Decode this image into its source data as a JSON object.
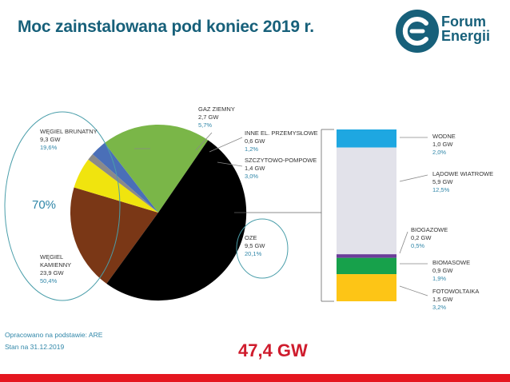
{
  "header": {
    "title": "Moc zainstalowana pod koniec 2019 r.",
    "logo_line1": "Forum",
    "logo_line2": "Energii"
  },
  "chart_data": [
    {
      "type": "pie",
      "unit": "GW",
      "slices": [
        {
          "name": "WĘGIEL BRUNATNY",
          "value": 9.3,
          "value_label": "9,3 GW",
          "pct_label": "19,6%",
          "color": "#7a3716"
        },
        {
          "name": "GAZ ZIEMNY",
          "value": 2.7,
          "value_label": "2,7 GW",
          "pct_label": "5,7%",
          "color": "#f0e40e"
        },
        {
          "name": "INNE EL. PRZEMYSŁOWE",
          "value": 0.6,
          "value_label": "0,6 GW",
          "pct_label": "1,2%",
          "color": "#8a8a8a"
        },
        {
          "name": "SZCZYTOWO-POMPOWE",
          "value": 1.4,
          "value_label": "1,4 GW",
          "pct_label": "3,0%",
          "color": "#4a6fb8"
        },
        {
          "name": "OZE",
          "value": 9.5,
          "value_label": "9,5 GW",
          "pct_label": "20,1%",
          "color": "#7ab648"
        },
        {
          "name": "WĘGIEL KAMIENNY",
          "value": 23.9,
          "value_label": "23,9 GW",
          "pct_label": "50,4%",
          "color": "#000000"
        }
      ],
      "highlight_label": "70%"
    },
    {
      "type": "bar",
      "stacked": true,
      "unit": "GW",
      "segments": [
        {
          "name": "WODNE",
          "value": 1.0,
          "value_label": "1,0 GW",
          "pct_label": "2,0%",
          "color": "#1ea7e1"
        },
        {
          "name": "LĄDOWE WIATROWE",
          "value": 5.9,
          "value_label": "5,9 GW",
          "pct_label": "12,5%",
          "color": "#e2e2ea"
        },
        {
          "name": "BIOGAZOWE",
          "value": 0.2,
          "value_label": "0,2 GW",
          "pct_label": "0,5%",
          "color": "#6b3d99"
        },
        {
          "name": "BIOMASOWE",
          "value": 0.9,
          "value_label": "0,9 GW",
          "pct_label": "1,9%",
          "color": "#17a14b"
        },
        {
          "name": "FOTOWOLTAIKA",
          "value": 1.5,
          "value_label": "1,5 GW",
          "pct_label": "3,2%",
          "color": "#fdc516"
        }
      ]
    }
  ],
  "footer": {
    "source": "Opracowano na podstawie: ARE",
    "date": "Stan na 31.12.2019",
    "total": "47,4 GW"
  }
}
